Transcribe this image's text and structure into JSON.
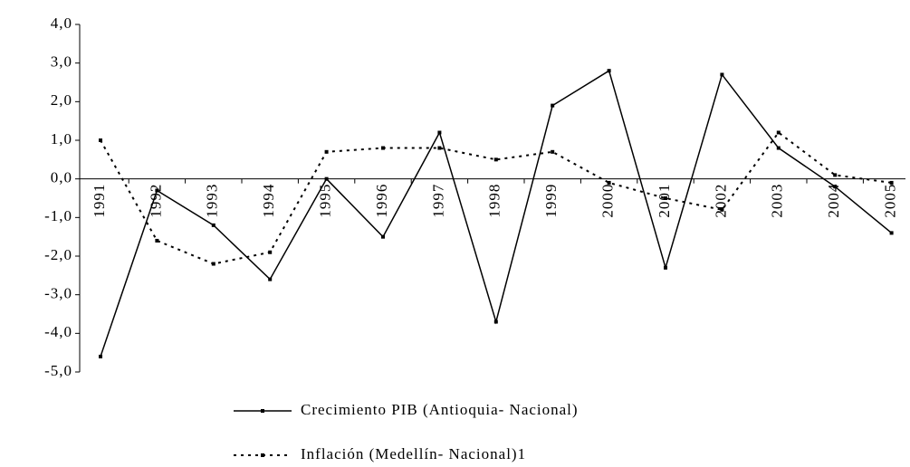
{
  "chart_data": {
    "type": "line",
    "categories": [
      "1991",
      "1992",
      "1993",
      "1994",
      "1995",
      "1996",
      "1997",
      "1998",
      "1999",
      "2000",
      "2001",
      "2002",
      "2003",
      "2004",
      "2005"
    ],
    "series": [
      {
        "name": "Crecimiento PIB (Antioquia- Nacional)",
        "color": "#000000",
        "style": "solid",
        "values": [
          -4.6,
          -0.3,
          -1.2,
          -2.6,
          0.0,
          -1.5,
          1.2,
          -3.7,
          1.9,
          2.8,
          -2.3,
          2.7,
          0.8,
          -0.2,
          -1.4
        ]
      },
      {
        "name": "Inflación (Medellín- Nacional)1",
        "color": "#000000",
        "style": "dotted",
        "values": [
          1.0,
          -1.6,
          -2.2,
          -1.9,
          0.7,
          0.8,
          0.8,
          0.5,
          0.7,
          -0.1,
          -0.5,
          -0.8,
          1.2,
          0.1,
          -0.1
        ]
      }
    ],
    "ylim": [
      -5,
      4
    ],
    "yticks": [
      {
        "value": 4,
        "label": "4,0"
      },
      {
        "value": 3,
        "label": "3,0"
      },
      {
        "value": 2,
        "label": "2,0"
      },
      {
        "value": 1,
        "label": "1,0"
      },
      {
        "value": 0,
        "label": "0,0"
      },
      {
        "value": -1,
        "label": "-1,0"
      },
      {
        "value": -2,
        "label": "-2,0"
      },
      {
        "value": -3,
        "label": "-3,0"
      },
      {
        "value": -4,
        "label": "-4,0"
      },
      {
        "value": -5,
        "label": "-5,0"
      }
    ],
    "grid": false
  }
}
